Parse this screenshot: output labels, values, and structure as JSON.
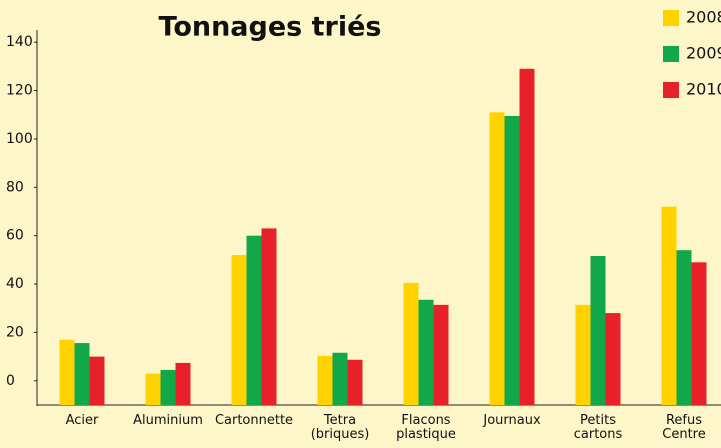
{
  "chart_data": {
    "type": "bar",
    "title": "Tonnages triés",
    "categories": [
      "Acier",
      "Aluminium",
      "Cartonnette",
      "Tetra\n(briques)",
      "Flacons\nplastique",
      "Journaux",
      "Petits\ncartons",
      "Refus\nCentre"
    ],
    "series": [
      {
        "name": "2008",
        "color": "#ffd200",
        "values": [
          17,
          3,
          52,
          10.3,
          40.5,
          111,
          31.4,
          72
        ]
      },
      {
        "name": "2009",
        "color": "#12a84a",
        "values": [
          15.6,
          4.5,
          60,
          11.6,
          33.5,
          109.5,
          51.6,
          54
        ]
      },
      {
        "name": "2010",
        "color": "#e8202a",
        "values": [
          10,
          7.4,
          63,
          8.7,
          31.4,
          129,
          28,
          49
        ]
      }
    ],
    "ylim": [
      -10,
      150
    ],
    "yticks": [
      0,
      20,
      40,
      60,
      80,
      100,
      120,
      140
    ],
    "grid": false,
    "legend": "top-right"
  }
}
